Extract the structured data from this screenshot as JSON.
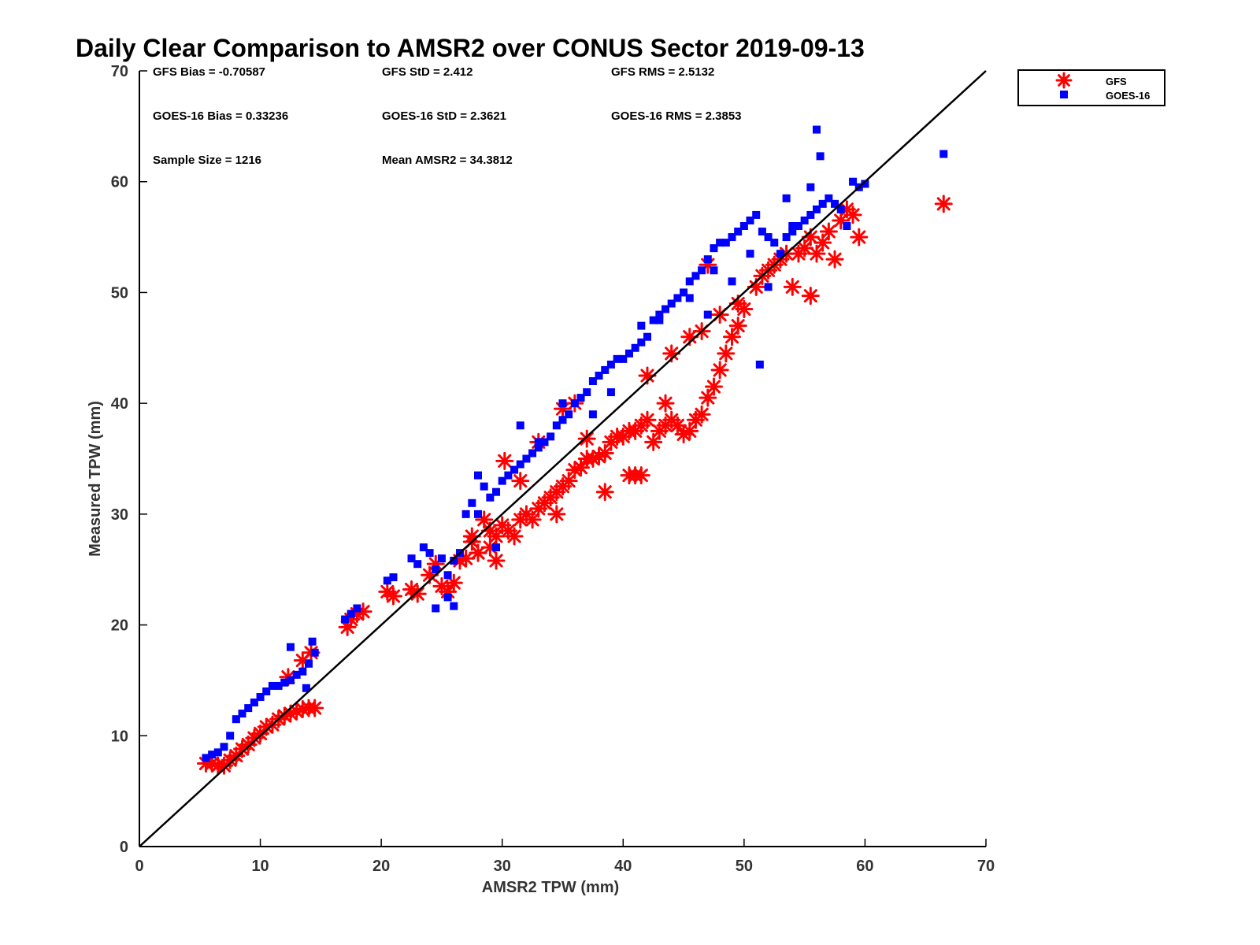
{
  "chart_data": {
    "type": "scatter",
    "title": "Daily Clear Comparison to AMSR2 over CONUS Sector 2019-09-13",
    "xlabel": "AMSR2 TPW (mm)",
    "ylabel": "Measured TPW (mm)",
    "xlim": [
      0,
      70
    ],
    "ylim": [
      0,
      70
    ],
    "xticks": [
      0,
      10,
      20,
      30,
      40,
      50,
      60,
      70
    ],
    "yticks": [
      0,
      10,
      20,
      30,
      40,
      50,
      60,
      70
    ],
    "grid": false,
    "legend_position": "outside-top-right",
    "reference_line": {
      "x": [
        0,
        70
      ],
      "y": [
        0,
        70
      ],
      "color": "#000000"
    },
    "stats": [
      {
        "label": "GFS Bias = -0.70587"
      },
      {
        "label": "GFS StD = 2.412"
      },
      {
        "label": "GFS RMS = 2.5132"
      },
      {
        "label": "GOES-16 Bias = 0.33236"
      },
      {
        "label": "GOES-16 StD = 2.3621"
      },
      {
        "label": "GOES-16 RMS = 2.3853"
      },
      {
        "label": "Sample Size = 1216"
      },
      {
        "label": "Mean AMSR2 = 34.3812"
      }
    ],
    "series": [
      {
        "name": "GFS",
        "marker": "asterisk",
        "color": "#ff0000",
        "x": [
          5.5,
          6.0,
          6.5,
          7.0,
          7.5,
          8.0,
          8.5,
          9.0,
          9.5,
          10.0,
          10.5,
          11.0,
          11.5,
          12.0,
          12.5,
          13.0,
          13.5,
          14.0,
          14.5,
          12.3,
          13.5,
          14.2,
          17.2,
          17.5,
          18.0,
          18.5,
          20.5,
          21.0,
          22.5,
          23.0,
          24.0,
          24.5,
          25.0,
          25.5,
          26.0,
          26.5,
          27.0,
          27.5,
          28.0,
          28.5,
          29.0,
          29.5,
          30.0,
          30.5,
          31.0,
          31.5,
          32.0,
          32.5,
          33.0,
          33.5,
          34.0,
          34.5,
          35.0,
          35.5,
          36.0,
          36.5,
          37.0,
          37.5,
          38.0,
          38.5,
          39.0,
          39.5,
          40.0,
          40.5,
          41.0,
          41.5,
          42.0,
          42.5,
          43.0,
          43.5,
          44.0,
          44.5,
          45.0,
          45.5,
          46.0,
          46.5,
          47.0,
          47.5,
          48.0,
          48.5,
          49.0,
          49.5,
          50.0,
          51.0,
          51.5,
          52.0,
          52.5,
          53.0,
          53.5,
          54.0,
          54.5,
          55.0,
          55.5,
          56.0,
          56.5,
          57.0,
          57.5,
          58.0,
          58.5,
          59.0,
          59.5,
          66.5,
          30.2,
          31.5,
          29.5,
          33.0,
          35.0,
          36.0,
          40.5,
          41.0,
          41.5,
          44.0,
          45.5,
          46.5,
          48.0,
          49.5,
          27.5,
          28.0,
          29.0,
          34.5,
          37.0,
          38.5,
          42.0,
          43.5,
          47.0,
          55.5
        ],
        "y": [
          7.5,
          7.5,
          7.3,
          7.3,
          7.8,
          8.2,
          8.8,
          9.2,
          9.8,
          10.2,
          10.8,
          11.0,
          11.5,
          11.8,
          12.0,
          12.2,
          12.4,
          12.5,
          12.5,
          15.3,
          16.8,
          17.5,
          19.8,
          20.5,
          21.0,
          21.2,
          23.0,
          22.6,
          23.2,
          22.8,
          24.5,
          25.5,
          23.5,
          23.0,
          23.8,
          25.8,
          26.0,
          27.5,
          26.5,
          29.5,
          28.5,
          28.0,
          29.0,
          28.5,
          28.0,
          29.5,
          30.0,
          29.5,
          30.5,
          31.0,
          31.5,
          32.0,
          32.5,
          33.0,
          34.0,
          34.2,
          35.0,
          35.0,
          35.2,
          35.5,
          36.5,
          37.0,
          37.0,
          37.5,
          37.5,
          38.0,
          38.5,
          36.5,
          37.5,
          38.0,
          38.5,
          38.0,
          37.2,
          37.5,
          38.5,
          39.0,
          40.5,
          41.5,
          43.0,
          44.5,
          46.0,
          47.0,
          48.5,
          50.5,
          51.5,
          52.0,
          52.5,
          53.0,
          53.5,
          50.5,
          53.5,
          54.0,
          49.7,
          53.5,
          54.5,
          55.5,
          53.0,
          56.5,
          57.5,
          57.0,
          55.0,
          58.0,
          34.8,
          33.0,
          25.8,
          36.5,
          39.5,
          40.0,
          33.5,
          33.5,
          33.5,
          44.5,
          46.0,
          46.5,
          48.0,
          49.0,
          28.0,
          26.5,
          27.0,
          30.0,
          36.8,
          32.0,
          42.5,
          40.0,
          52.5,
          55.0
        ]
      },
      {
        "name": "GOES-16",
        "marker": "square",
        "color": "#0000ff",
        "x": [
          5.5,
          6.0,
          6.5,
          7.0,
          7.5,
          8.0,
          8.5,
          9.0,
          9.5,
          10.0,
          10.5,
          11.0,
          11.5,
          12.0,
          12.5,
          13.0,
          13.5,
          14.0,
          14.5,
          12.5,
          13.8,
          14.3,
          17.0,
          17.5,
          18.0,
          20.5,
          21.0,
          22.5,
          23.0,
          23.5,
          24.0,
          24.5,
          25.0,
          25.5,
          26.0,
          26.5,
          27.0,
          27.5,
          28.0,
          28.5,
          29.0,
          29.5,
          30.0,
          30.5,
          31.0,
          31.5,
          32.0,
          32.5,
          33.0,
          33.5,
          34.0,
          34.5,
          35.0,
          35.5,
          36.0,
          36.5,
          37.0,
          37.5,
          38.0,
          38.5,
          39.0,
          39.5,
          40.0,
          40.5,
          41.0,
          41.5,
          42.0,
          42.5,
          43.0,
          43.5,
          44.0,
          44.5,
          45.0,
          45.5,
          46.0,
          46.5,
          47.0,
          47.5,
          48.0,
          48.5,
          49.0,
          49.5,
          50.0,
          50.5,
          51.0,
          51.5,
          52.0,
          52.5,
          53.0,
          53.5,
          54.0,
          54.5,
          55.0,
          55.5,
          56.0,
          56.5,
          57.0,
          57.5,
          58.0,
          58.5,
          59.0,
          59.5,
          60.0,
          66.5,
          56.0,
          56.3,
          53.5,
          51.3,
          47.0,
          45.5,
          43.0,
          41.5,
          28.0,
          29.5,
          31.5,
          33.0,
          35.0,
          37.5,
          39.0,
          26.0,
          24.5,
          25.5,
          47.5,
          49.0,
          50.5,
          52.0,
          54.0,
          55.5
        ],
        "y": [
          8.0,
          8.3,
          8.5,
          9.0,
          10.0,
          11.5,
          12.0,
          12.5,
          13.0,
          13.5,
          14.0,
          14.5,
          14.5,
          14.8,
          15.0,
          15.5,
          15.8,
          16.5,
          17.5,
          18.0,
          14.3,
          18.5,
          20.5,
          21.0,
          21.5,
          24.0,
          24.3,
          26.0,
          25.5,
          27.0,
          26.5,
          25.0,
          26.0,
          24.5,
          25.8,
          26.5,
          30.0,
          31.0,
          33.5,
          32.5,
          31.5,
          32.0,
          33.0,
          33.5,
          34.0,
          34.5,
          35.0,
          35.5,
          36.0,
          36.5,
          37.0,
          38.0,
          38.5,
          39.0,
          40.0,
          40.5,
          41.0,
          42.0,
          42.5,
          43.0,
          43.5,
          44.0,
          44.0,
          44.5,
          45.0,
          45.5,
          46.0,
          47.5,
          48.0,
          48.5,
          49.0,
          49.5,
          50.0,
          51.0,
          51.5,
          52.0,
          53.0,
          54.0,
          54.5,
          54.5,
          55.0,
          55.5,
          56.0,
          56.5,
          57.0,
          55.5,
          55.0,
          54.5,
          53.5,
          55.0,
          55.5,
          56.0,
          56.5,
          57.0,
          57.5,
          58.0,
          58.5,
          58.0,
          57.5,
          56.0,
          60.0,
          59.5,
          59.8,
          62.5,
          64.7,
          62.3,
          58.5,
          43.5,
          48.0,
          49.5,
          47.5,
          47.0,
          30.0,
          27.0,
          38.0,
          36.5,
          40.0,
          39.0,
          41.0,
          21.7,
          21.5,
          22.5,
          52.0,
          51.0,
          53.5,
          50.5,
          56.0,
          59.5
        ]
      }
    ]
  }
}
